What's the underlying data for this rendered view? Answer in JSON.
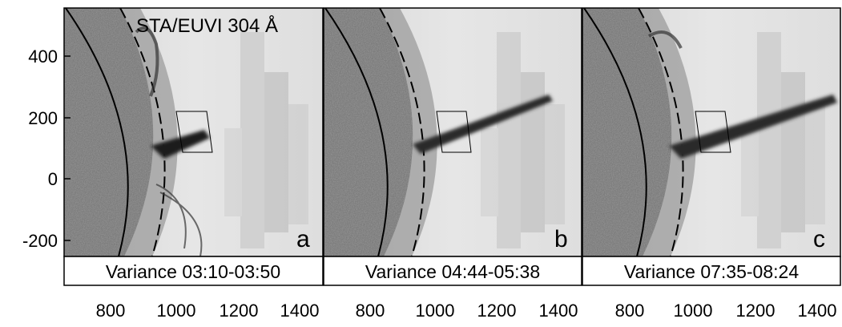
{
  "instrument_label": "STA/EUVI 304 Å",
  "y_ticks": [
    "400",
    "200",
    "0",
    "-200"
  ],
  "panels": [
    {
      "letter": "a",
      "caption": "Variance 03:10-03:50",
      "x_ticks": [
        "800",
        "1000",
        "1200",
        "1400"
      ]
    },
    {
      "letter": "b",
      "caption": "Variance 04:44-05:38",
      "x_ticks": [
        "800",
        "1000",
        "1200",
        "1400"
      ]
    },
    {
      "letter": "c",
      "caption": "Variance 07:35-08:24",
      "x_ticks": [
        "800",
        "1000",
        "1200",
        "1400"
      ]
    }
  ],
  "colors": {
    "disk": "#6e6e6e",
    "background": "#e8e8e8",
    "jet": "#222222",
    "frame": "#000000"
  }
}
